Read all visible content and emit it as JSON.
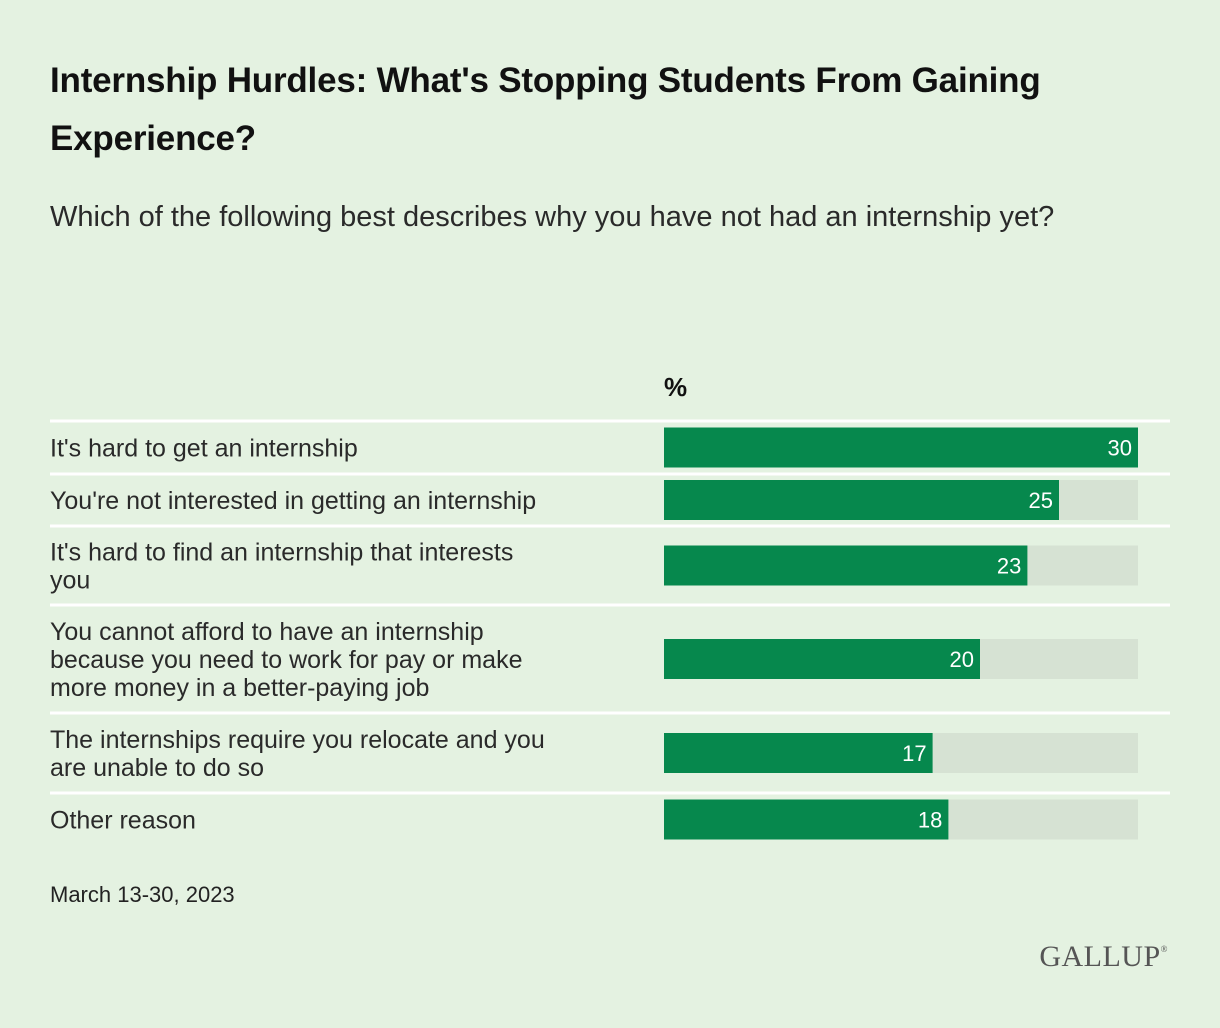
{
  "title": "Internship Hurdles: What's Stopping Students From Gaining Experience?",
  "subtitle": "Which of the following best describes why you have not had an internship yet?",
  "unit_label": "%",
  "date": "March 13-30, 2023",
  "brand": "GALLUP",
  "colors": {
    "background": "#e4f2e1",
    "bar": "#06884d",
    "track": "#d6e2d3",
    "divider": "#ffffff"
  },
  "chart_data": {
    "type": "bar",
    "orientation": "horizontal",
    "categories": [
      [
        "It's hard to get an internship"
      ],
      [
        "You're not interested in getting an internship"
      ],
      [
        "It's hard to find an internship that interests",
        "you"
      ],
      [
        "You cannot afford to have an internship",
        "because you need to work for pay or make",
        "more money in a better-paying job"
      ],
      [
        "The internships require you relocate and you",
        "are unable to do so"
      ],
      [
        "Other reason"
      ]
    ],
    "values": [
      30,
      25,
      23,
      20,
      17,
      18
    ],
    "xlim": [
      0,
      30
    ],
    "data_labels": true
  }
}
